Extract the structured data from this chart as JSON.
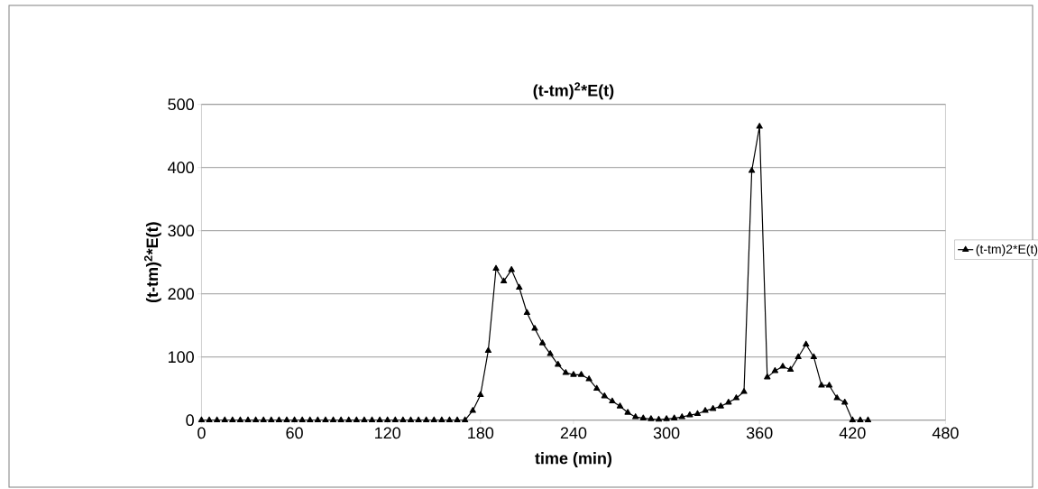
{
  "chart_data": {
    "type": "line",
    "title": "(t-tm)$^{2}$*E(t)",
    "xlabel": "time (min)",
    "ylabel": "(t-tm)$^{2}$*E(t)",
    "x": [
      0,
      5,
      10,
      15,
      20,
      25,
      30,
      35,
      40,
      45,
      50,
      55,
      60,
      65,
      70,
      75,
      80,
      85,
      90,
      95,
      100,
      105,
      110,
      115,
      120,
      125,
      130,
      135,
      140,
      145,
      150,
      155,
      160,
      165,
      170,
      175,
      180,
      185,
      190,
      195,
      200,
      205,
      210,
      215,
      220,
      225,
      230,
      235,
      240,
      245,
      250,
      255,
      260,
      265,
      270,
      275,
      280,
      285,
      290,
      295,
      300,
      305,
      310,
      315,
      320,
      325,
      330,
      335,
      340,
      345,
      350,
      355,
      360,
      365,
      370,
      375,
      380,
      385,
      390,
      395,
      400,
      405,
      410,
      415,
      420,
      425,
      430
    ],
    "series": [
      {
        "name": "(t-tm)2*E(t)",
        "color": "#000000",
        "values": [
          0,
          0,
          0,
          0,
          0,
          0,
          0,
          0,
          0,
          0,
          0,
          0,
          0,
          0,
          0,
          0,
          0,
          0,
          0,
          0,
          0,
          0,
          0,
          0,
          0,
          0,
          0,
          0,
          0,
          0,
          0,
          0,
          0,
          0,
          0,
          15,
          40,
          110,
          240,
          220,
          238,
          210,
          170,
          145,
          122,
          105,
          88,
          75,
          72,
          72,
          65,
          50,
          38,
          30,
          22,
          12,
          5,
          3,
          2,
          1,
          2,
          3,
          5,
          8,
          10,
          15,
          18,
          22,
          28,
          35,
          45,
          395,
          465,
          68,
          78,
          85,
          80,
          100,
          120,
          100,
          55,
          55,
          35,
          28,
          0,
          0,
          0
        ]
      }
    ],
    "xlim": [
      0,
      480
    ],
    "xticks": [
      0,
      60,
      120,
      180,
      240,
      300,
      360,
      420,
      480
    ],
    "ylim": [
      0,
      500
    ],
    "yticks": [
      0,
      100,
      200,
      300,
      400,
      500
    ],
    "grid": "y",
    "legend": "right",
    "marker": "triangle",
    "line_style": "solid"
  }
}
